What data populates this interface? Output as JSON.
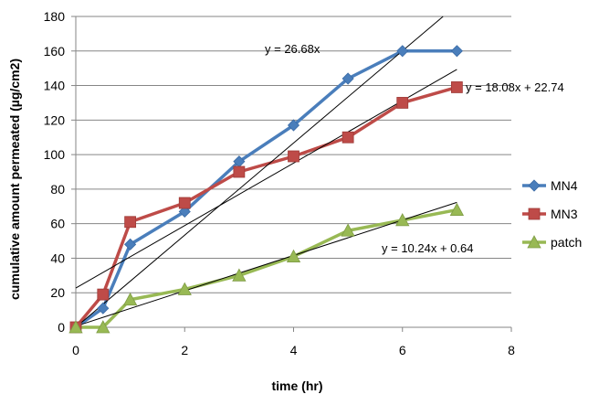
{
  "chart_data": {
    "type": "line",
    "xlabel": "time (hr)",
    "ylabel": "cumulative amount permeated (µg/cm2)",
    "xlim": [
      0,
      8
    ],
    "ylim": [
      0,
      180
    ],
    "xticks": [
      0,
      2,
      4,
      6,
      8
    ],
    "yticks": [
      0,
      20,
      40,
      60,
      80,
      100,
      120,
      140,
      160,
      180
    ],
    "grid": "horizontal",
    "legend_position": "right",
    "series": [
      {
        "name": "MN4",
        "color": "#4a7ebb",
        "marker": "diamond",
        "x": [
          0,
          0.5,
          1,
          2,
          3,
          4,
          5,
          6,
          7
        ],
        "y": [
          0,
          11,
          48,
          67,
          96,
          117,
          144,
          160,
          160
        ]
      },
      {
        "name": "MN3",
        "color": "#be4b48",
        "marker": "square",
        "x": [
          0,
          0.5,
          1,
          2,
          3,
          4,
          5,
          6,
          7
        ],
        "y": [
          0,
          19,
          61,
          72,
          90,
          99,
          110,
          130,
          139
        ]
      },
      {
        "name": "patch",
        "color": "#98b954",
        "marker": "triangle",
        "x": [
          0,
          0.5,
          1,
          2,
          3,
          4,
          5,
          6,
          7
        ],
        "y": [
          0,
          0,
          16,
          22,
          30,
          41,
          56,
          62,
          68
        ]
      }
    ],
    "trendlines": [
      {
        "label": "y = 26.68x",
        "slope": 26.68,
        "intercept": 0,
        "x_range": [
          0,
          6.75
        ]
      },
      {
        "label": "y = 18.08x + 22.74",
        "slope": 18.08,
        "intercept": 22.74,
        "x_range": [
          0,
          7
        ]
      },
      {
        "label": "y = 10.24x + 0.64",
        "slope": 10.24,
        "intercept": 0.64,
        "x_range": [
          0,
          7
        ]
      }
    ]
  }
}
